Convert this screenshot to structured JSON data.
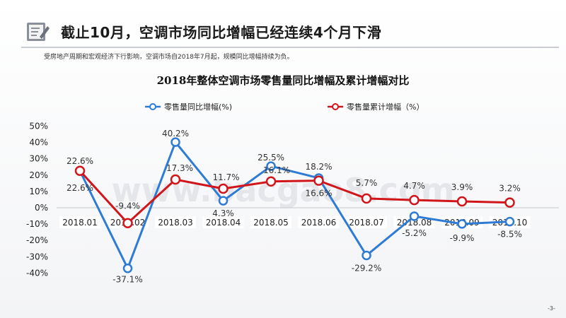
{
  "slide": {
    "title": "截止10月，空调市场同比增幅已经连续4个月下滑",
    "subtitle": "受房地产周期和宏观经济下行影响，空调市场自2018年7月起，规模同比增幅持续为负。",
    "page_number": "-3-",
    "icon": "notepad-pencil-icon"
  },
  "chart_data": {
    "type": "line",
    "title": "2018年整体空调市场零售量同比增幅及累计增幅对比",
    "categories": [
      "2018.01",
      "2018.02",
      "2018.03",
      "2018.04",
      "2018.05",
      "2018.06",
      "2018.07",
      "2018.08",
      "2018.09",
      "2018.10"
    ],
    "series": [
      {
        "name": "零售量同比增幅(%)",
        "color": "#2e7bd6",
        "values": [
          22.6,
          -37.1,
          40.2,
          4.3,
          25.5,
          18.2,
          -29.2,
          -5.2,
          -9.9,
          -8.5
        ],
        "labels": [
          "22.6%",
          "-37.1%",
          "40.2%",
          "4.3%",
          "25.5%",
          "18.2%",
          "-29.2%",
          "-5.2%",
          "-9.9%",
          "-8.5%"
        ]
      },
      {
        "name": "零售量累计增幅（%）",
        "color": "#d0161b",
        "values": [
          22.6,
          -9.4,
          17.3,
          11.7,
          16.1,
          16.6,
          5.7,
          4.7,
          3.9,
          3.2
        ],
        "labels": [
          "22.6%",
          "-9.4%",
          "17.3%",
          "11.7%",
          "16.1%",
          "16.6%",
          "5.7%",
          "4.7%",
          "3.9%",
          "3.2%"
        ]
      }
    ],
    "y_ticks": [
      "50%",
      "40%",
      "30%",
      "20%",
      "10%",
      "0%",
      "-10%",
      "-20%",
      "-30%",
      "-40%"
    ],
    "y_tick_values": [
      50,
      40,
      30,
      20,
      10,
      0,
      -10,
      -20,
      -30,
      -40
    ],
    "ylim": [
      -40,
      50
    ],
    "legend_position": "top",
    "grid": false,
    "watermark": "www.bacgao8.com"
  }
}
